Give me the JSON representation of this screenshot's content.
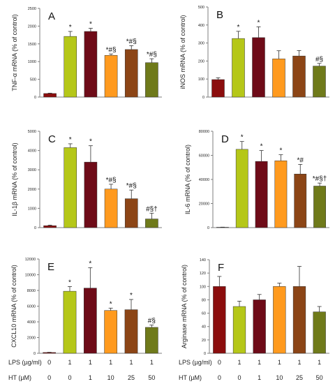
{
  "colors": [
    "#8b0d0d",
    "#b5c718",
    "#6e0b18",
    "#ff9a1e",
    "#8c4516",
    "#6f7a1a"
  ],
  "x_conditions": {
    "lps_label": "LPS (µg/ml)",
    "ht_label": "HT  (µM)",
    "lps": [
      "0",
      "1",
      "1",
      "1",
      "1",
      "1"
    ],
    "ht": [
      "0",
      "0",
      "1",
      "10",
      "25",
      "50"
    ]
  },
  "chart_data": [
    {
      "type": "bar",
      "panel": "A",
      "ylabel": "TNF-α mRNA (% of control)",
      "ylim": [
        0,
        2500
      ],
      "yticks": [
        "0",
        "500",
        "1000",
        "1500",
        "2000",
        "2500"
      ],
      "values": [
        100,
        1710,
        1850,
        1175,
        1340,
        970
      ],
      "errors": [
        10,
        140,
        90,
        40,
        110,
        110
      ],
      "annotations": [
        "",
        "*",
        "*",
        "*#§",
        "*#§",
        "*#§"
      ]
    },
    {
      "type": "bar",
      "panel": "B",
      "ylabel": "iNOS mRNA (% of control)",
      "ylim": [
        0,
        500
      ],
      "yticks": [
        "0",
        "100",
        "200",
        "300",
        "400",
        "500"
      ],
      "values": [
        97,
        325,
        330,
        212,
        228,
        172
      ],
      "errors": [
        10,
        40,
        60,
        45,
        30,
        15
      ],
      "annotations": [
        "",
        "*",
        "*",
        "",
        "",
        "#§"
      ]
    },
    {
      "type": "bar",
      "panel": "C",
      "ylabel": "IL-1β mRNA (% of control)",
      "ylim": [
        0,
        5000
      ],
      "yticks": [
        "0",
        "1000",
        "2000",
        "3000",
        "4000",
        "5000"
      ],
      "values": [
        100,
        4150,
        3400,
        2000,
        1500,
        450
      ],
      "errors": [
        30,
        200,
        850,
        250,
        450,
        300
      ],
      "annotations": [
        "",
        "*",
        "*",
        "*#§",
        "*#§",
        "#§†"
      ]
    },
    {
      "type": "bar",
      "panel": "D",
      "ylabel": "IL-6 mRNA (% of control)",
      "ylim": [
        0,
        80000
      ],
      "yticks": [
        "0",
        "20000",
        "40000",
        "60000",
        "80000"
      ],
      "values": [
        300,
        65000,
        55000,
        55500,
        44500,
        34500
      ],
      "errors": [
        100,
        6500,
        9000,
        5000,
        8000,
        2500
      ],
      "annotations": [
        "",
        "*",
        "*",
        "*",
        "*#",
        "*#§†"
      ]
    },
    {
      "type": "bar",
      "panel": "E",
      "ylabel": "CXCL10 mRNA (% of control)",
      "ylim": [
        0,
        12000
      ],
      "yticks": [
        "0",
        "2000",
        "4000",
        "6000",
        "8000",
        "10000",
        "12000"
      ],
      "values": [
        100,
        7900,
        8300,
        5450,
        5550,
        3300
      ],
      "errors": [
        30,
        600,
        2600,
        300,
        1300,
        300
      ],
      "annotations": [
        "",
        "*",
        "*",
        "*",
        "*",
        "#§"
      ]
    },
    {
      "type": "bar",
      "panel": "F",
      "ylabel": "Arginase mRNA (% of control)",
      "ylim": [
        0,
        140
      ],
      "yticks": [
        "0",
        "20",
        "40",
        "60",
        "80",
        "100",
        "120",
        "140"
      ],
      "values": [
        100,
        70,
        80,
        100,
        100,
        62
      ],
      "errors": [
        15,
        8,
        8,
        5,
        30,
        8
      ],
      "annotations": [
        "",
        "",
        "",
        "",
        "",
        ""
      ]
    }
  ]
}
